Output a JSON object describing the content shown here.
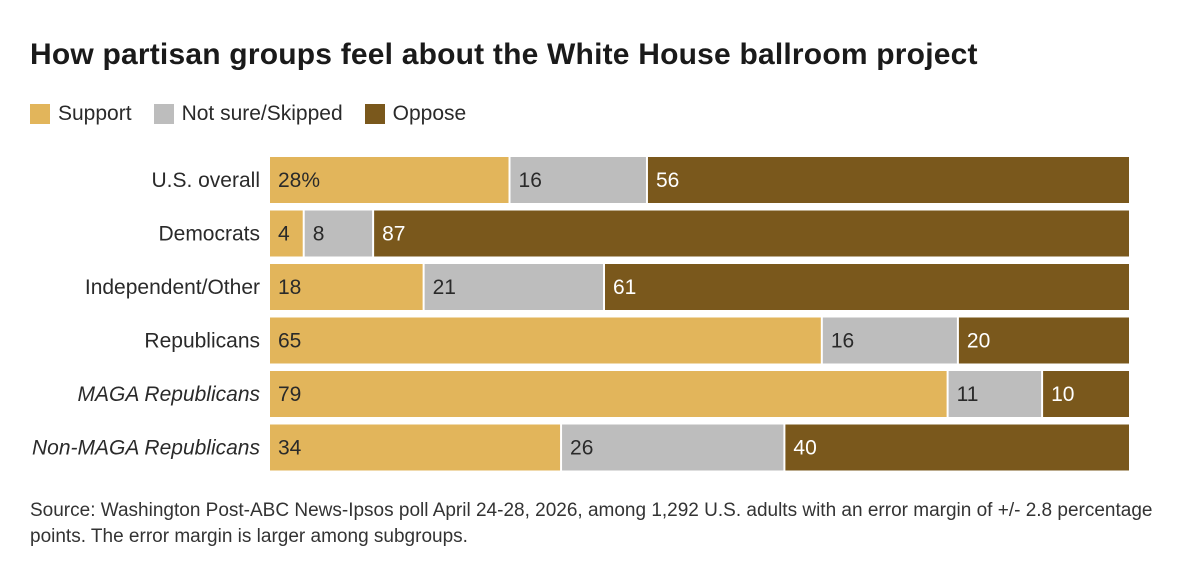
{
  "chart_data": {
    "type": "bar",
    "orientation": "horizontal",
    "stacked": true,
    "percent_stacked": true,
    "title": "How partisan groups feel about the White House ballroom project",
    "categories": [
      "U.S. overall",
      "Democrats",
      "Independent/Other",
      "Republicans",
      "MAGA Republicans",
      "Non-MAGA Republicans"
    ],
    "italic_categories": [
      "MAGA Republicans",
      "Non-MAGA Republicans"
    ],
    "series": [
      {
        "name": "Support",
        "color": "#e2b55b",
        "values": [
          28,
          4,
          18,
          65,
          79,
          34
        ],
        "labels": [
          "28%",
          "4",
          "18",
          "65",
          "79",
          "34"
        ],
        "label_color": "#2a2a2a"
      },
      {
        "name": "Not sure/Skipped",
        "color": "#bdbdbd",
        "values": [
          16,
          8,
          21,
          16,
          11,
          26
        ],
        "labels": [
          "16",
          "8",
          "21",
          "16",
          "11",
          "26"
        ],
        "label_color": "#2a2a2a"
      },
      {
        "name": "Oppose",
        "color": "#7a581c",
        "values": [
          56,
          87,
          61,
          20,
          10,
          40
        ],
        "labels": [
          "56",
          "87",
          "61",
          "20",
          "10",
          "40"
        ],
        "label_color": "#ffffff"
      }
    ],
    "legend_position": "top-left",
    "xlabel": "",
    "ylabel": ""
  },
  "source": "Source: Washington Post-ABC News-Ipsos poll April 24-28, 2026, among 1,292 U.S. adults with an error margin of +/- 2.8 percentage points. The error margin is larger among subgroups."
}
